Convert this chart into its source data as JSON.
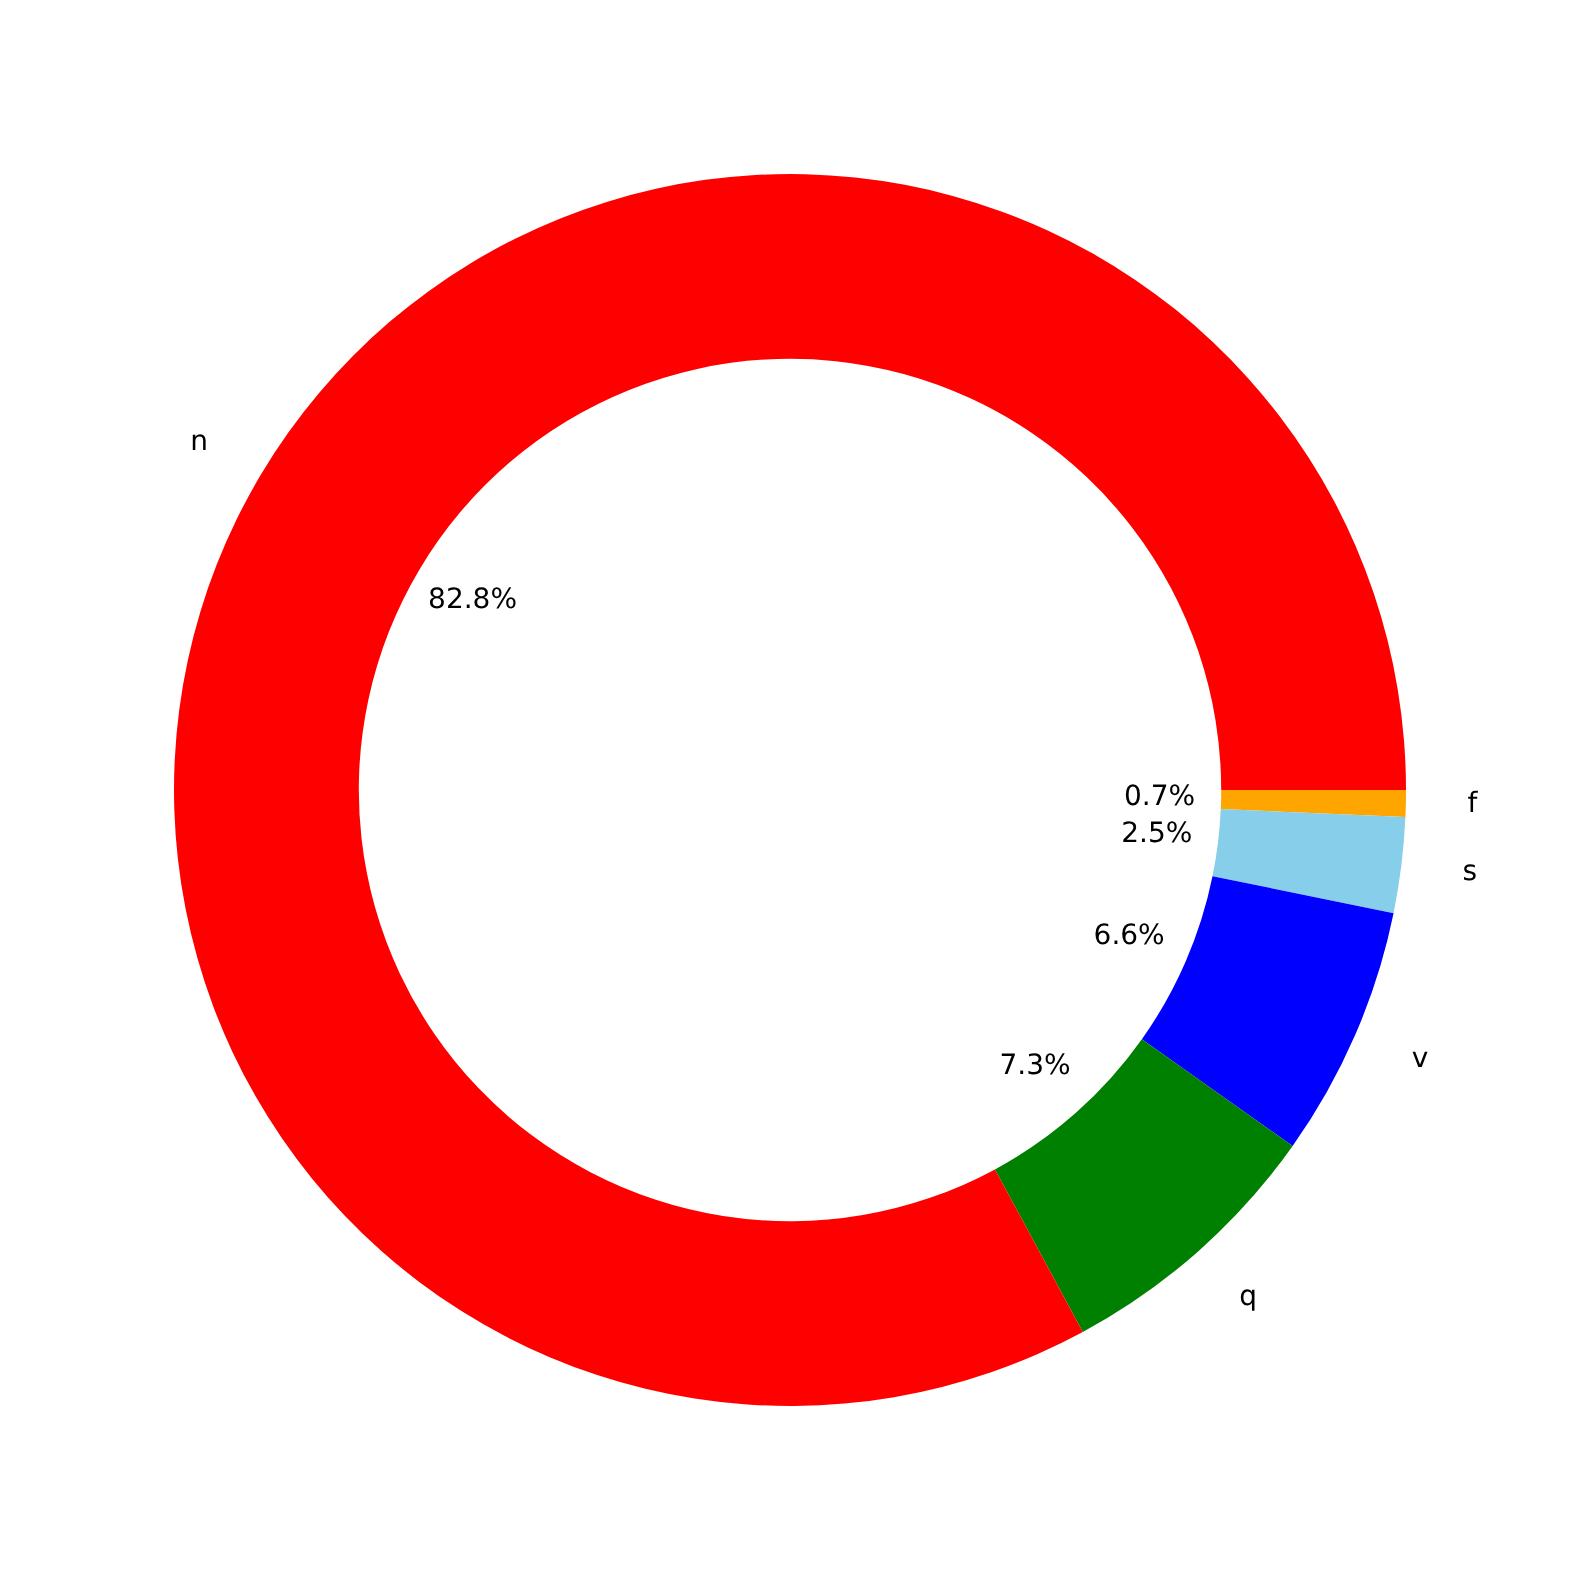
{
  "chart_data": {
    "type": "donut",
    "categories": [
      "f",
      "s",
      "v",
      "q",
      "n"
    ],
    "values": [
      0.7,
      2.5,
      6.6,
      7.3,
      82.8
    ],
    "colors": [
      "#ffa500",
      "#87ceeb",
      "#0000ff",
      "#008000",
      "#ff0000"
    ],
    "value_labels": [
      "0.7%",
      "2.5%",
      "6.6%",
      "7.3%",
      "82.8%"
    ]
  }
}
